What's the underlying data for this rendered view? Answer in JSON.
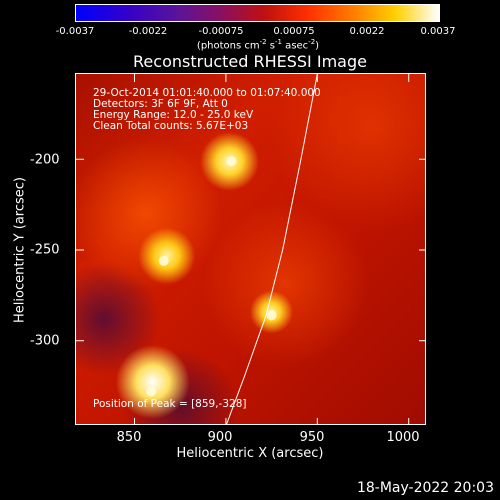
{
  "colorbar": {
    "ticks": [
      "-0.0037",
      "-0.0022",
      "-0.00075",
      "0.00075",
      "0.0022",
      "0.0037"
    ],
    "units_parts": [
      "(photons cm",
      "-2",
      " s",
      "-1",
      " asec",
      "-2",
      ")"
    ]
  },
  "chart_data": {
    "type": "heatmap",
    "title": "Reconstructed RHESSI Image",
    "xlabel": "Heliocentric X (arcsec)",
    "ylabel": "Heliocentric Y (arcsec)",
    "xlim": [
      818,
      1010
    ],
    "ylim": [
      -347,
      -153
    ],
    "x_ticks": [
      "850",
      "900",
      "950",
      "1000"
    ],
    "y_ticks": [
      "-200",
      "-250",
      "-300"
    ],
    "x_tick_values": [
      850,
      900,
      950,
      1000
    ],
    "y_tick_values": [
      -200,
      -250,
      -300
    ],
    "colorbar_range": [
      -0.0037,
      0.0037
    ],
    "annotation_lines": [
      "29-Oct-2014 01:01:40.000 to 01:07:40.000",
      "Detectors: 3F 6F 9F, Att 0",
      "Energy Range: 12.0 - 25.0 keV",
      "Clean     Total counts: 5.67E+03"
    ],
    "peak_text": "Position of Peak = [859,-328]",
    "peak_position": [
      859,
      -328
    ],
    "bright_sources": [
      {
        "x": 903,
        "y": -201
      },
      {
        "x": 866,
        "y": -256
      },
      {
        "x": 925,
        "y": -286
      },
      {
        "x": 859,
        "y": -328
      }
    ],
    "limb_curve": [
      [
        950,
        -153
      ],
      [
        941,
        -200
      ],
      [
        931,
        -250
      ],
      [
        922,
        -286
      ],
      [
        910,
        -320
      ],
      [
        900,
        -347
      ]
    ]
  },
  "timestamp": "18-May-2022 20:03"
}
